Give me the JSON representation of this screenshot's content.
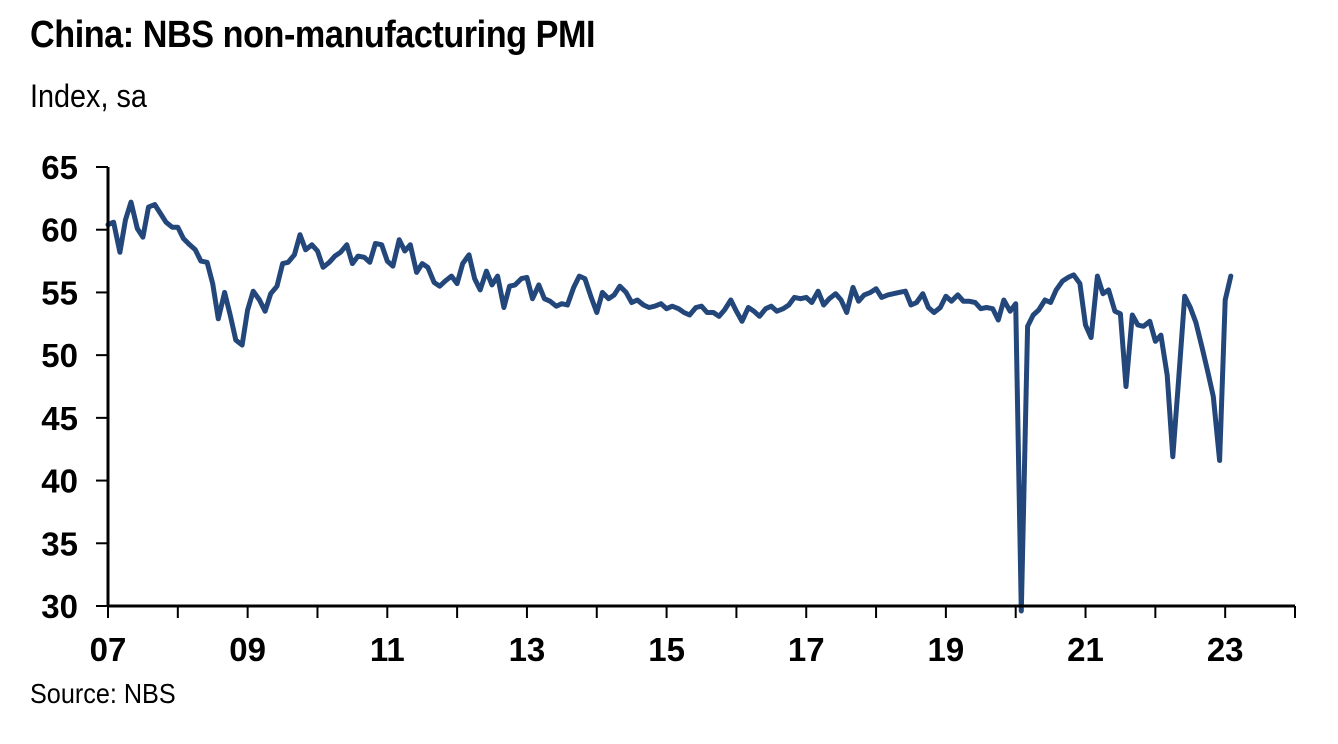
{
  "title": "China: NBS non-manufacturing PMI",
  "subtitle": "Index, sa",
  "source": "Source: NBS",
  "colors": {
    "line": "#23477a",
    "axis": "#000000"
  },
  "chart_data": {
    "type": "line",
    "title": "China: NBS non-manufacturing PMI",
    "ylabel": "Index, sa",
    "xlabel": "",
    "ylim": [
      30,
      65
    ],
    "xlim": [
      2007.0,
      2024.0
    ],
    "grid": false,
    "y_ticks": [
      65,
      60,
      55,
      50,
      45,
      40,
      35,
      30
    ],
    "x_ticks": [
      {
        "value": 2007,
        "label": "07"
      },
      {
        "value": 2009,
        "label": "09"
      },
      {
        "value": 2011,
        "label": "11"
      },
      {
        "value": 2013,
        "label": "13"
      },
      {
        "value": 2015,
        "label": "15"
      },
      {
        "value": 2017,
        "label": "17"
      },
      {
        "value": 2019,
        "label": "19"
      },
      {
        "value": 2021,
        "label": "21"
      },
      {
        "value": 2023,
        "label": "23"
      }
    ],
    "series": [
      {
        "x": [
          2007.0,
          2007.08,
          2007.17,
          2007.25,
          2007.33,
          2007.42,
          2007.5,
          2007.58,
          2007.67,
          2007.75,
          2007.83,
          2007.92,
          2008.0,
          2008.08,
          2008.17,
          2008.25,
          2008.33,
          2008.42,
          2008.5,
          2008.58,
          2008.67,
          2008.75,
          2008.83,
          2008.92,
          2009.0,
          2009.08,
          2009.17,
          2009.25,
          2009.33,
          2009.42,
          2009.5,
          2009.58,
          2009.67,
          2009.75,
          2009.83,
          2009.92,
          2010.0,
          2010.08,
          2010.17,
          2010.25,
          2010.33,
          2010.42,
          2010.5,
          2010.58,
          2010.67,
          2010.75,
          2010.83,
          2010.92,
          2011.0,
          2011.08,
          2011.17,
          2011.25,
          2011.33,
          2011.42,
          2011.5,
          2011.58,
          2011.67,
          2011.75,
          2011.83,
          2011.92,
          2012.0,
          2012.08,
          2012.17,
          2012.25,
          2012.33,
          2012.42,
          2012.5,
          2012.58,
          2012.67,
          2012.75,
          2012.83,
          2012.92,
          2013.0,
          2013.08,
          2013.17,
          2013.25,
          2013.33,
          2013.42,
          2013.5,
          2013.58,
          2013.67,
          2013.75,
          2013.83,
          2013.92,
          2014.0,
          2014.08,
          2014.17,
          2014.25,
          2014.33,
          2014.42,
          2014.5,
          2014.58,
          2014.67,
          2014.75,
          2014.83,
          2014.92,
          2015.0,
          2015.08,
          2015.17,
          2015.25,
          2015.33,
          2015.42,
          2015.5,
          2015.58,
          2015.67,
          2015.75,
          2015.83,
          2015.92,
          2016.0,
          2016.08,
          2016.17,
          2016.25,
          2016.33,
          2016.42,
          2016.5,
          2016.58,
          2016.67,
          2016.75,
          2016.83,
          2016.92,
          2017.0,
          2017.08,
          2017.17,
          2017.25,
          2017.33,
          2017.42,
          2017.5,
          2017.58,
          2017.67,
          2017.75,
          2017.83,
          2017.92,
          2018.0,
          2018.08,
          2018.17,
          2018.25,
          2018.33,
          2018.42,
          2018.5,
          2018.58,
          2018.67,
          2018.75,
          2018.83,
          2018.92,
          2019.0,
          2019.08,
          2019.17,
          2019.25,
          2019.33,
          2019.42,
          2019.5,
          2019.58,
          2019.67,
          2019.75,
          2019.83,
          2019.92,
          2020.0,
          2020.08,
          2020.17,
          2020.25,
          2020.33,
          2020.42,
          2020.5,
          2020.58,
          2020.67,
          2020.75,
          2020.83,
          2020.92,
          2021.0,
          2021.08,
          2021.17,
          2021.25,
          2021.33,
          2021.42,
          2021.5,
          2021.58,
          2021.67,
          2021.75,
          2021.83,
          2021.92,
          2022.0,
          2022.08,
          2022.17,
          2022.25,
          2022.33,
          2022.42,
          2022.5,
          2022.58,
          2022.67,
          2022.75,
          2022.83,
          2022.92,
          2023.0,
          2023.08
        ],
        "values": [
          60.4,
          60.6,
          58.2,
          60.8,
          62.2,
          60.1,
          59.4,
          61.8,
          62.0,
          61.3,
          60.6,
          60.2,
          60.2,
          59.3,
          58.8,
          58.4,
          57.5,
          57.4,
          55.7,
          52.9,
          55.0,
          53.2,
          51.2,
          50.8,
          53.6,
          55.1,
          54.4,
          53.5,
          54.9,
          55.5,
          57.3,
          57.4,
          58.0,
          59.6,
          58.4,
          58.8,
          58.3,
          57.0,
          57.4,
          57.9,
          58.2,
          58.8,
          57.3,
          57.9,
          57.8,
          57.4,
          58.9,
          58.8,
          57.5,
          57.1,
          59.2,
          58.3,
          58.8,
          56.6,
          57.3,
          57.0,
          55.8,
          55.5,
          55.9,
          56.3,
          55.7,
          57.3,
          58.0,
          56.1,
          55.2,
          56.7,
          55.6,
          56.3,
          53.8,
          55.5,
          55.6,
          56.1,
          56.2,
          54.5,
          55.6,
          54.5,
          54.3,
          53.9,
          54.1,
          54.0,
          55.4,
          56.3,
          56.1,
          54.6,
          53.4,
          55.0,
          54.5,
          54.8,
          55.5,
          55.0,
          54.2,
          54.4,
          54.0,
          53.8,
          53.9,
          54.1,
          53.7,
          53.9,
          53.7,
          53.4,
          53.2,
          53.8,
          53.9,
          53.4,
          53.4,
          53.1,
          53.6,
          54.4,
          53.5,
          52.7,
          53.8,
          53.5,
          53.1,
          53.7,
          53.9,
          53.5,
          53.7,
          54.0,
          54.6,
          54.5,
          54.6,
          54.2,
          55.1,
          54.0,
          54.5,
          54.9,
          54.4,
          53.4,
          55.4,
          54.3,
          54.8,
          55.0,
          55.3,
          54.6,
          54.8,
          54.9,
          55.0,
          55.1,
          54.0,
          54.2,
          54.9,
          53.8,
          53.4,
          53.8,
          54.7,
          54.3,
          54.8,
          54.3,
          54.3,
          54.2,
          53.7,
          53.8,
          53.7,
          52.8,
          54.4,
          53.5,
          54.1,
          29.6,
          52.3,
          53.2,
          53.6,
          54.4,
          54.2,
          55.2,
          55.9,
          56.2,
          56.4,
          55.7,
          52.4,
          51.4,
          56.3,
          54.9,
          55.2,
          53.5,
          53.3,
          47.5,
          53.2,
          52.4,
          52.3,
          52.7,
          51.1,
          51.6,
          48.4,
          41.9,
          47.8,
          54.7,
          53.8,
          52.6,
          50.6,
          48.7,
          46.7,
          41.6,
          54.4,
          56.3
        ]
      }
    ]
  }
}
